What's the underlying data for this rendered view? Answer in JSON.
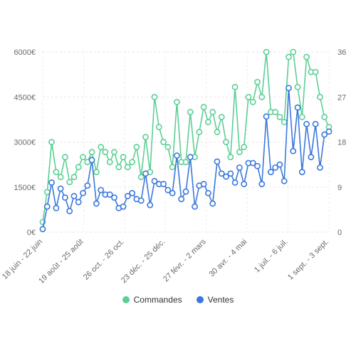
{
  "chart_data": {
    "type": "line",
    "x_tick_labels": [
      "18 juin - 22 juin",
      "19 août - 25 août",
      "26 oct. - 26 oct.",
      "23 déc. - 25 déc.",
      "27 févr. - 2 mars",
      "30 avr. - 4 mai",
      "1 juil. - 6 juil.",
      "1 sept. - 3 sept."
    ],
    "y_left": {
      "ticks": [
        "0€",
        "1500€",
        "3000€",
        "4500€",
        "6000€"
      ],
      "min": 0,
      "max": 6000,
      "unit": "€"
    },
    "y_right": {
      "ticks": [
        "0",
        "9",
        "18",
        "27",
        "36"
      ],
      "min": 0,
      "max": 36
    },
    "grid": true,
    "legend_position": "bottom",
    "series": [
      {
        "name": "Commandes",
        "axis": "right",
        "color": "#5ccf94",
        "values": [
          2,
          8,
          18,
          12,
          11,
          15,
          10,
          11,
          13,
          15,
          14,
          16,
          12,
          17,
          16,
          14,
          16,
          13,
          15,
          13,
          14,
          17,
          11,
          19,
          12,
          27,
          21,
          18,
          17,
          13,
          26,
          14,
          14,
          24,
          15,
          20,
          25,
          22,
          24,
          20,
          23,
          18,
          15,
          29,
          16,
          17,
          27,
          26,
          30,
          27,
          36,
          24,
          24,
          23,
          22,
          35,
          36,
          29,
          23,
          35,
          32,
          32,
          27,
          23,
          21
        ],
        "values_display_note": ""
      },
      {
        "name": "Ventes",
        "axis": "left",
        "color": "#3a78dc",
        "values": [
          100,
          850,
          1650,
          800,
          1450,
          1150,
          700,
          1200,
          1000,
          1300,
          1550,
          2400,
          950,
          1400,
          1250,
          1250,
          1150,
          800,
          850,
          1200,
          1300,
          1100,
          1050,
          1950,
          900,
          1700,
          1600,
          1600,
          1400,
          1300,
          2550,
          1100,
          1350,
          2500,
          850,
          1550,
          1600,
          1300,
          950,
          2350,
          1950,
          1850,
          1950,
          1650,
          2150,
          1600,
          2300,
          2300,
          2200,
          1600,
          3850,
          2000,
          2150,
          2250,
          1700,
          4800,
          2700,
          4150,
          2000,
          3600,
          2500,
          3600,
          2150,
          3250,
          3350
        ]
      }
    ]
  },
  "legend": {
    "items": [
      {
        "label": "Commandes",
        "color": "#5ccf94"
      },
      {
        "label": "Ventes",
        "color": "#3a78dc"
      }
    ]
  }
}
